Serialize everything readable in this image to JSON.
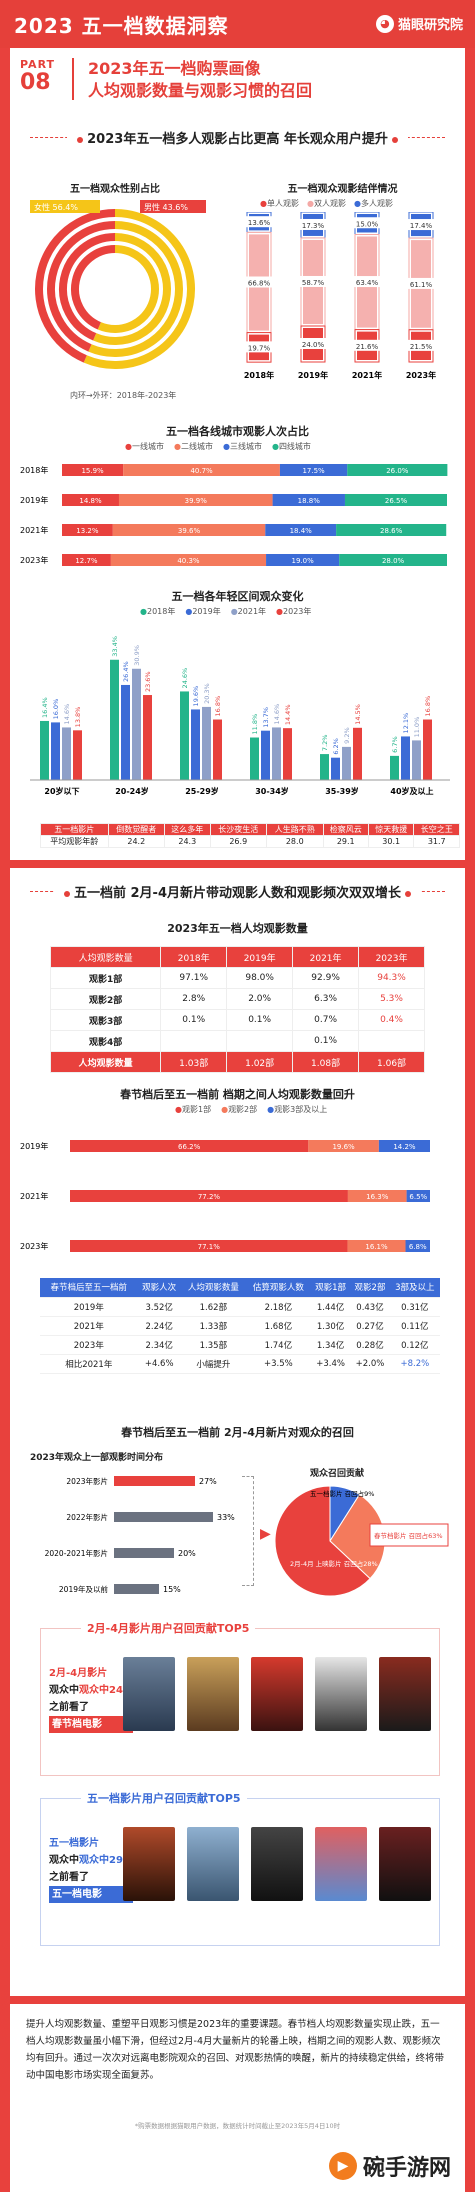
{
  "header": {
    "title": "2023 五一档数据洞察",
    "logo": "猫眼研究院"
  },
  "part": {
    "label": "PART",
    "num": "08",
    "title1": "2023年五一档购票画像",
    "title2": "人均观影数量与观影习惯的召回"
  },
  "sec1": {
    "title": "2023年五一档多人观影占比更高 年长观众用户提升"
  },
  "gender": {
    "title": "五一档观众性别占比",
    "female": "女性 56.4%",
    "male": "男性 43.6%",
    "note": "内环→外环：2018年-2023年",
    "female_color": "#f5c518",
    "male_color": "#e8413d"
  },
  "structure": {
    "title": "五一档观众观影结伴情况",
    "legend": [
      "单人观影",
      "双人观影",
      "多人观影"
    ],
    "years": [
      "2018年",
      "2019年",
      "2021年",
      "2023年"
    ],
    "single": [
      "19.7%",
      "24.0%",
      "21.6%",
      "21.5%"
    ],
    "double": [
      "66.8%",
      "58.7%",
      "63.4%",
      "61.1%"
    ],
    "multi": [
      "13.6%",
      "17.3%",
      "15.0%",
      "17.4%"
    ],
    "chart_data": {
      "type": "bar",
      "categories": [
        "2018年",
        "2019年",
        "2021年",
        "2023年"
      ],
      "series": [
        {
          "name": "单人观影",
          "values": [
            19.7,
            24.0,
            21.6,
            21.5
          ]
        },
        {
          "name": "双人观影",
          "values": [
            66.8,
            58.7,
            63.4,
            61.1
          ]
        },
        {
          "name": "多人观影",
          "values": [
            13.6,
            17.3,
            15.0,
            17.4
          ]
        }
      ]
    }
  },
  "city": {
    "title": "五一档各线城市观影人次占比",
    "legend": [
      "一线城市",
      "二线城市",
      "三线城市",
      "四线城市"
    ],
    "rows": [
      {
        "year": "2018年",
        "v": [
          "15.9%",
          "40.7%",
          "17.5%",
          "26.0%"
        ]
      },
      {
        "year": "2019年",
        "v": [
          "14.8%",
          "39.9%",
          "18.8%",
          "26.5%"
        ]
      },
      {
        "year": "2021年",
        "v": [
          "13.2%",
          "39.6%",
          "18.4%",
          "28.6%"
        ]
      },
      {
        "year": "2023年",
        "v": [
          "12.7%",
          "40.3%",
          "19.0%",
          "28.0%"
        ]
      }
    ],
    "chart_data": {
      "type": "bar",
      "categories": [
        "2018年",
        "2019年",
        "2021年",
        "2023年"
      ],
      "series": [
        {
          "name": "一线城市",
          "values": [
            15.9,
            14.8,
            13.2,
            12.7
          ]
        },
        {
          "name": "二线城市",
          "values": [
            40.7,
            39.9,
            39.6,
            40.3
          ]
        },
        {
          "name": "三线城市",
          "values": [
            17.5,
            18.8,
            18.4,
            19.0
          ]
        },
        {
          "name": "四线城市",
          "values": [
            26.0,
            26.5,
            28.6,
            28.0
          ]
        }
      ]
    }
  },
  "age": {
    "title": "五一档各年轻区间观众变化",
    "legend": [
      "2018年",
      "2019年",
      "2021年",
      "2023年"
    ],
    "categories": [
      "20岁以下",
      "20-24岁",
      "25-29岁",
      "30-34岁",
      "35-39岁",
      "40岁及以上"
    ],
    "labels": [
      [
        "16.4%",
        "16.0%",
        "14.6%",
        "13.8%"
      ],
      [
        "33.4%",
        "26.4%",
        "30.9%",
        "23.6%"
      ],
      [
        "24.6%",
        "19.6%",
        "20.3%",
        "16.8%"
      ],
      [
        "11.8%",
        "13.7%",
        "14.6%",
        "14.4%"
      ],
      [
        "7.2%",
        "6.2%",
        "9.2%",
        "14.5%"
      ],
      [
        "6.7%",
        "12.1%",
        "11.0%",
        "16.8%"
      ]
    ],
    "chart_data": {
      "type": "bar",
      "categories": [
        "20岁以下",
        "20-24岁",
        "25-29岁",
        "30-34岁",
        "35-39岁",
        "40岁及以上"
      ],
      "series": [
        {
          "name": "2018年",
          "values": [
            16.4,
            33.4,
            24.6,
            11.8,
            7.2,
            6.7
          ]
        },
        {
          "name": "2019年",
          "values": [
            16.0,
            26.4,
            19.6,
            13.7,
            6.2,
            12.1
          ]
        },
        {
          "name": "2021年",
          "values": [
            14.6,
            30.9,
            20.3,
            14.6,
            9.2,
            11.0
          ]
        },
        {
          "name": "2023年",
          "values": [
            13.8,
            23.6,
            16.8,
            14.4,
            14.5,
            16.8
          ]
        }
      ]
    }
  },
  "film_age": {
    "header": [
      "五一档影片",
      "倒数觉醒者",
      "这么多年",
      "长沙夜生活",
      "人生路不熟",
      "检察风云",
      "惊天救援",
      "长空之王"
    ],
    "row_label": "平均观影年龄",
    "values": [
      "24.2",
      "24.3",
      "26.9",
      "28.0",
      "29.1",
      "30.1",
      "31.7"
    ]
  },
  "sec2": {
    "title": "五一档前 2月-4月新片带动观影人数和观影频次双双增长"
  },
  "avg": {
    "title": "2023年五一档人均观影数量",
    "header": [
      "人均观影数量",
      "2018年",
      "2019年",
      "2021年",
      "2023年"
    ],
    "rows": [
      [
        "观影1部",
        "97.1%",
        "98.0%",
        "92.9%",
        "94.3%"
      ],
      [
        "观影2部",
        "2.8%",
        "2.0%",
        "6.3%",
        "5.3%"
      ],
      [
        "观影3部",
        "0.1%",
        "0.1%",
        "0.7%",
        "0.4%"
      ],
      [
        "观影4部",
        "",
        "",
        "0.1%",
        ""
      ],
      [
        "人均观影数量",
        "1.03部",
        "1.02部",
        "1.08部",
        "1.06部"
      ]
    ]
  },
  "spring": {
    "title": "春节档后至五一档前 档期之间人均观影数量回升",
    "legend": [
      "观影1部",
      "观影2部",
      "观影3部及以上"
    ],
    "rows": [
      {
        "year": "2019年",
        "v": [
          "66.2%",
          "19.6%",
          "14.2%"
        ]
      },
      {
        "year": "2021年",
        "v": [
          "77.2%",
          "16.3%",
          "6.5%"
        ]
      },
      {
        "year": "2023年",
        "v": [
          "77.1%",
          "16.1%",
          "6.8%"
        ]
      }
    ],
    "chart_data": {
      "type": "bar",
      "categories": [
        "2019年",
        "2021年",
        "2023年"
      ],
      "series": [
        {
          "name": "观影1部",
          "values": [
            66.2,
            77.2,
            77.1
          ]
        },
        {
          "name": "观影2部",
          "values": [
            19.6,
            16.3,
            16.1
          ]
        },
        {
          "name": "观影3部及以上",
          "values": [
            14.2,
            6.5,
            6.8
          ]
        }
      ]
    }
  },
  "tbl2": {
    "header": [
      "春节档后至五一档前",
      "观影人次",
      "人均观影数量",
      "估算观影人数",
      "观影1部",
      "观影2部",
      "3部及以上"
    ],
    "rows": [
      [
        "2019年",
        "3.52亿",
        "1.62部",
        "2.18亿",
        "1.44亿",
        "0.43亿",
        "0.31亿"
      ],
      [
        "2021年",
        "2.24亿",
        "1.33部",
        "1.68亿",
        "1.30亿",
        "0.27亿",
        "0.11亿"
      ],
      [
        "2023年",
        "2.34亿",
        "1.35部",
        "1.74亿",
        "1.34亿",
        "0.28亿",
        "0.12亿"
      ],
      [
        "相比2021年",
        "+4.6%",
        "小幅提升",
        "+3.5%",
        "+3.4%",
        "+2.0%",
        "+8.2%"
      ]
    ]
  },
  "recall": {
    "title": "春节档后至五一档前 2月-4月新片对观众的召回",
    "dist_title": "2023年观众上一部观影时间分布",
    "items": [
      {
        "label": "2023年影片",
        "v": "27%"
      },
      {
        "label": "2022年影片",
        "v": "33%"
      },
      {
        "label": "2020-2021年影片",
        "v": "20%"
      },
      {
        "label": "2019年及以前",
        "v": "15%"
      }
    ],
    "contrib_title": "观众召回贡献",
    "slices": [
      "五一档影片 召回占9%",
      "2月-4月 上映影片 召回占28%",
      "春节档影片 召回占63%"
    ],
    "chart_data": {
      "type": "bar",
      "categories": [
        "2023年影片",
        "2022年影片",
        "2020-2021年影片",
        "2019年及以前"
      ],
      "values": [
        27,
        33,
        20,
        15
      ]
    }
  },
  "top1": {
    "title": "2月-4月影片用户召回贡献TOP5",
    "l1": "2月-4月影片",
    "l2": "观众中24%",
    "l3": "之前看了",
    "l4": "春节档电影"
  },
  "top2": {
    "title": "五一档影片用户召回贡献TOP5",
    "l1": "五一档影片",
    "l2": "观众中29%",
    "l3": "之前看了",
    "l4": "五一档电影"
  },
  "summary": "提升人均观影数量、重塑平日观影习惯是2023年的重要课题。春节档人均观影数量实现止跌，五一档人均观影数量虽小幅下滑，但经过2月-4月大量新片的轮番上映，档期之间的观影人数、观影频次均有回升。通过一次次对远离电影院观众的召回、对观影热情的唤醒，新片的持续稳定供给，终将带动中国电影市场实现全面复苏。",
  "source": "*购票数据根据猫眼用户数据，数据统计时间截止至2023年5月4日10时",
  "watermark": "碗手游网"
}
